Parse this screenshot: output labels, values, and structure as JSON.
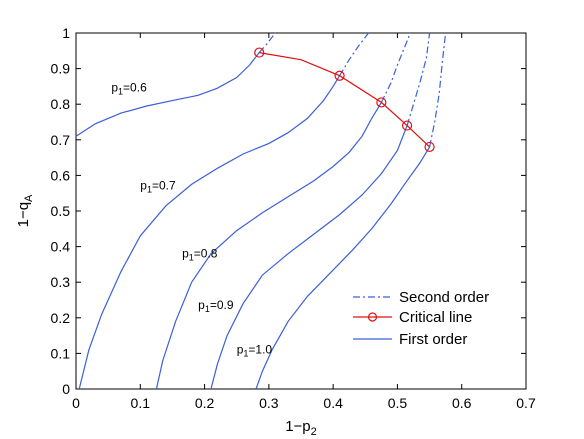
{
  "chart_data": {
    "type": "line",
    "title": "",
    "xlabel": "1−p",
    "xlabel_sub": "2",
    "ylabel": "1−q",
    "ylabel_sub": "A",
    "xlim": [
      0,
      0.7
    ],
    "ylim": [
      0,
      1
    ],
    "xticks": [
      "0",
      "0.1",
      "0.2",
      "0.3",
      "0.4",
      "0.5",
      "0.6",
      "0.7"
    ],
    "yticks": [
      "0",
      "0.1",
      "0.2",
      "0.3",
      "0.4",
      "0.5",
      "0.6",
      "0.7",
      "0.8",
      "0.9",
      "1"
    ],
    "grid": false,
    "legend_position": "bottom-right",
    "colors": {
      "curves": "#3a5fd9",
      "critical": "#e01010",
      "axis": "#000000"
    },
    "series": [
      {
        "name": "First order",
        "style": "solid",
        "curves": [
          {
            "label_main": "p",
            "label_sub": "1",
            "label_val": "=0.6",
            "points": [
              [
                0,
                0.71
              ],
              [
                0.03,
                0.745
              ],
              [
                0.07,
                0.775
              ],
              [
                0.11,
                0.795
              ],
              [
                0.15,
                0.81
              ],
              [
                0.19,
                0.825
              ],
              [
                0.22,
                0.845
              ],
              [
                0.25,
                0.875
              ],
              [
                0.27,
                0.91
              ],
              [
                0.285,
                0.945
              ]
            ]
          },
          {
            "label_main": "p",
            "label_sub": "1",
            "label_val": "=0.7",
            "points": [
              [
                0.005,
                0
              ],
              [
                0.02,
                0.11
              ],
              [
                0.04,
                0.21
              ],
              [
                0.07,
                0.33
              ],
              [
                0.1,
                0.43
              ],
              [
                0.14,
                0.515
              ],
              [
                0.18,
                0.575
              ],
              [
                0.22,
                0.62
              ],
              [
                0.26,
                0.66
              ],
              [
                0.3,
                0.69
              ],
              [
                0.33,
                0.72
              ],
              [
                0.36,
                0.76
              ],
              [
                0.385,
                0.81
              ],
              [
                0.4,
                0.85
              ],
              [
                0.41,
                0.88
              ]
            ]
          },
          {
            "label_main": "p",
            "label_sub": "1",
            "label_val": "=0.8",
            "points": [
              [
                0.125,
                0
              ],
              [
                0.135,
                0.08
              ],
              [
                0.155,
                0.19
              ],
              [
                0.18,
                0.3
              ],
              [
                0.21,
                0.38
              ],
              [
                0.25,
                0.445
              ],
              [
                0.29,
                0.495
              ],
              [
                0.33,
                0.54
              ],
              [
                0.37,
                0.585
              ],
              [
                0.4,
                0.625
              ],
              [
                0.425,
                0.665
              ],
              [
                0.445,
                0.71
              ],
              [
                0.46,
                0.76
              ],
              [
                0.475,
                0.805
              ]
            ]
          },
          {
            "label_main": "p",
            "label_sub": "1",
            "label_val": "=0.9",
            "points": [
              [
                0.21,
                0
              ],
              [
                0.22,
                0.07
              ],
              [
                0.235,
                0.15
              ],
              [
                0.26,
                0.24
              ],
              [
                0.29,
                0.32
              ],
              [
                0.33,
                0.38
              ],
              [
                0.37,
                0.435
              ],
              [
                0.41,
                0.49
              ],
              [
                0.445,
                0.545
              ],
              [
                0.475,
                0.605
              ],
              [
                0.5,
                0.67
              ],
              [
                0.515,
                0.74
              ]
            ]
          },
          {
            "label_main": "p",
            "label_sub": "1",
            "label_val": "=1.0",
            "points": [
              [
                0.28,
                0
              ],
              [
                0.29,
                0.05
              ],
              [
                0.305,
                0.11
              ],
              [
                0.33,
                0.19
              ],
              [
                0.36,
                0.26
              ],
              [
                0.395,
                0.325
              ],
              [
                0.43,
                0.39
              ],
              [
                0.46,
                0.45
              ],
              [
                0.49,
                0.52
              ],
              [
                0.515,
                0.585
              ],
              [
                0.535,
                0.635
              ],
              [
                0.55,
                0.68
              ]
            ]
          }
        ]
      },
      {
        "name": "Critical line",
        "style": "solid-marker",
        "points": [
          [
            0.285,
            0.945
          ],
          [
            0.35,
            0.925
          ],
          [
            0.41,
            0.88
          ],
          [
            0.475,
            0.805
          ],
          [
            0.515,
            0.74
          ],
          [
            0.55,
            0.68
          ]
        ],
        "markers": [
          [
            0.285,
            0.945
          ],
          [
            0.41,
            0.88
          ],
          [
            0.475,
            0.805
          ],
          [
            0.515,
            0.74
          ],
          [
            0.55,
            0.68
          ]
        ]
      },
      {
        "name": "Second order",
        "style": "dash-dot",
        "curves": [
          {
            "points": [
              [
                0.285,
                0.945
              ],
              [
                0.295,
                0.965
              ],
              [
                0.31,
                1.0
              ]
            ]
          },
          {
            "points": [
              [
                0.41,
                0.88
              ],
              [
                0.425,
                0.925
              ],
              [
                0.44,
                0.965
              ],
              [
                0.455,
                1.0
              ]
            ]
          },
          {
            "points": [
              [
                0.475,
                0.805
              ],
              [
                0.49,
                0.86
              ],
              [
                0.5,
                0.91
              ],
              [
                0.51,
                0.955
              ],
              [
                0.52,
                1.0
              ]
            ]
          },
          {
            "points": [
              [
                0.515,
                0.74
              ],
              [
                0.525,
                0.8
              ],
              [
                0.535,
                0.86
              ],
              [
                0.545,
                0.93
              ],
              [
                0.55,
                1.0
              ]
            ]
          },
          {
            "points": [
              [
                0.55,
                0.68
              ],
              [
                0.558,
                0.75
              ],
              [
                0.565,
                0.83
              ],
              [
                0.57,
                0.92
              ],
              [
                0.575,
                1.0
              ]
            ]
          }
        ]
      }
    ]
  }
}
